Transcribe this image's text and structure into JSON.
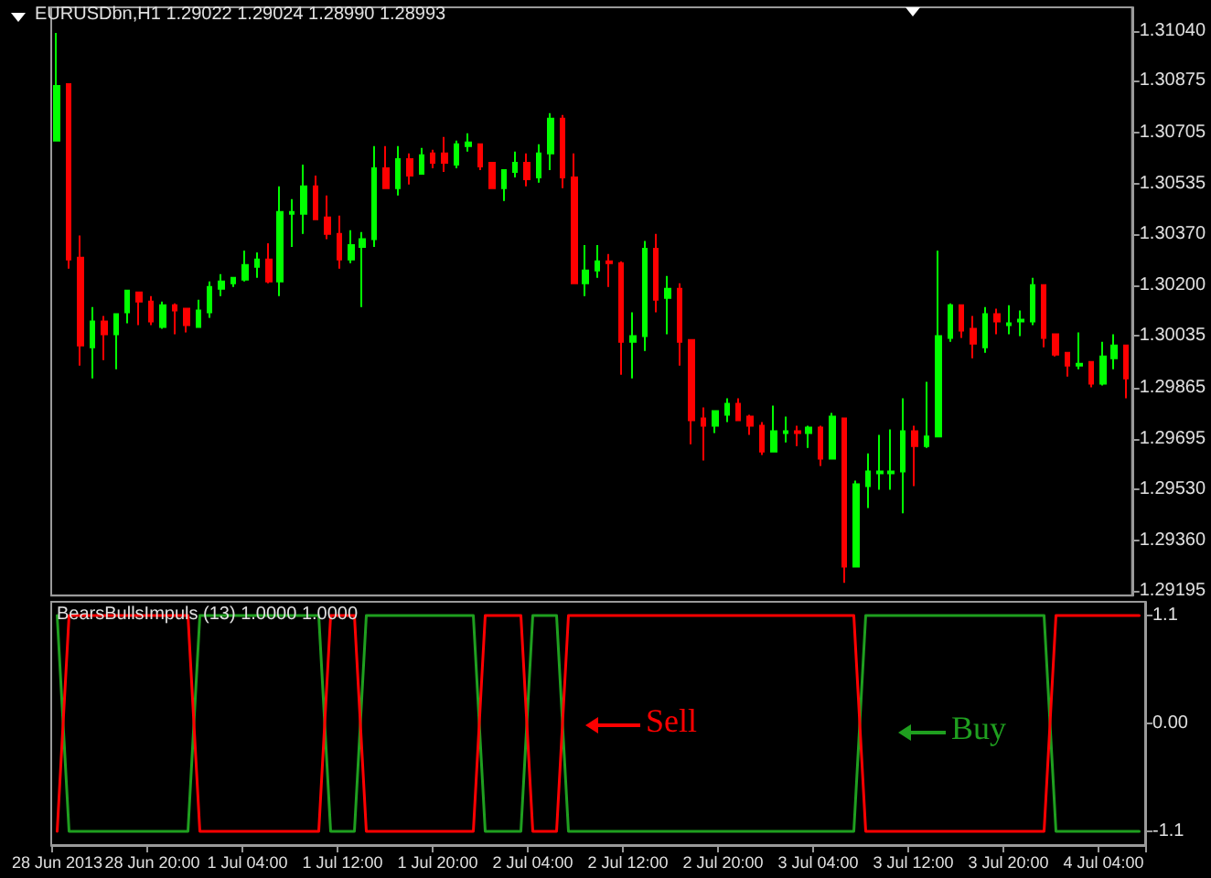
{
  "chart_data": [
    {
      "type": "candlestick",
      "title": "EURUSDbn,H1 1.29022 1.29024 1.28990 1.28993",
      "categories": [
        null,
        null,
        null,
        null,
        null,
        null,
        null,
        null,
        null,
        null,
        null,
        null,
        null,
        null,
        null,
        null,
        null,
        null,
        null,
        null,
        null,
        null,
        null,
        null,
        null,
        null,
        null,
        null,
        null,
        null,
        null,
        null,
        null,
        null,
        null,
        null,
        null,
        null,
        null,
        null,
        null,
        null,
        null,
        null,
        null,
        null,
        null,
        null,
        null,
        null,
        null,
        null,
        null,
        null,
        null,
        null,
        null,
        null,
        null,
        null,
        null,
        null,
        null,
        null,
        null,
        null,
        null,
        null,
        null,
        null,
        null,
        null,
        null,
        null,
        null,
        null,
        null,
        null,
        null,
        null,
        null,
        null,
        null,
        null,
        null,
        null,
        null,
        null,
        null,
        null,
        null,
        null
      ],
      "ohlc": [
        [
          1.30678,
          1.31033,
          1.30678,
          1.30858
        ],
        [
          1.30864,
          1.30864,
          1.30256,
          1.30286
        ],
        [
          1.30292,
          1.30365,
          1.29937,
          1.30003
        ],
        [
          1.29997,
          1.3013,
          1.29895,
          1.30082
        ],
        [
          1.30082,
          1.301,
          1.29955,
          1.3004
        ],
        [
          1.3004,
          1.30106,
          1.29925,
          1.30106
        ],
        [
          1.30112,
          1.30184,
          1.30076,
          1.30184
        ],
        [
          1.30178,
          1.30178,
          1.3007,
          1.30148
        ],
        [
          1.30148,
          1.30166,
          1.3007,
          1.30082
        ],
        [
          1.30064,
          1.30148,
          1.30058,
          1.30136
        ],
        [
          1.30136,
          1.30142,
          1.3004,
          1.30118
        ],
        [
          1.30124,
          1.30124,
          1.30046,
          1.3007
        ],
        [
          1.30064,
          1.30154,
          1.30064,
          1.30118
        ],
        [
          1.30112,
          1.30214,
          1.30094,
          1.30196
        ],
        [
          1.3019,
          1.30238,
          1.30166,
          1.30214
        ],
        [
          1.30208,
          1.30226,
          1.30196,
          1.30226
        ],
        [
          1.3022,
          1.30316,
          1.30214,
          1.30268
        ],
        [
          1.30262,
          1.3031,
          1.30226,
          1.30286
        ],
        [
          1.30286,
          1.3034,
          1.30208,
          1.30214
        ],
        [
          1.30214,
          1.30527,
          1.30166,
          1.30443
        ],
        [
          1.30437,
          1.30485,
          1.30328,
          1.30443
        ],
        [
          1.30437,
          1.30599,
          1.30371,
          1.30527
        ],
        [
          1.30527,
          1.30563,
          1.30419,
          1.30419
        ],
        [
          1.30425,
          1.30497,
          1.30353,
          1.30371
        ],
        [
          1.30371,
          1.30431,
          1.30256,
          1.30286
        ],
        [
          1.30286,
          1.30383,
          1.30274,
          1.30334
        ],
        [
          1.30328,
          1.30377,
          1.3013,
          1.30353
        ],
        [
          1.30353,
          1.3066,
          1.30328,
          1.30587
        ],
        [
          1.30587,
          1.3066,
          1.30521,
          1.30521
        ],
        [
          1.30521,
          1.3066,
          1.30497,
          1.30617
        ],
        [
          1.30617,
          1.30636,
          1.30533,
          1.30563
        ],
        [
          1.30569,
          1.30654,
          1.30569,
          1.3063
        ],
        [
          1.30636,
          1.30648,
          1.30587,
          1.30605
        ],
        [
          1.30636,
          1.3069,
          1.30575,
          1.30605
        ],
        [
          1.30599,
          1.30678,
          1.30587,
          1.30666
        ],
        [
          1.3066,
          1.30702,
          1.30642,
          1.30672
        ],
        [
          1.30666,
          1.30666,
          1.30581,
          1.30593
        ],
        [
          1.30605,
          1.30605,
          1.30521,
          1.30521
        ],
        [
          1.30521,
          1.30581,
          1.30479,
          1.30581
        ],
        [
          1.30575,
          1.30642,
          1.30557,
          1.30605
        ],
        [
          1.30605,
          1.30636,
          1.30527,
          1.30551
        ],
        [
          1.30557,
          1.30666,
          1.30539,
          1.30636
        ],
        [
          1.30636,
          1.30768,
          1.30581,
          1.3075
        ],
        [
          1.3075,
          1.30762,
          1.30521,
          1.30557
        ],
        [
          1.30557,
          1.30636,
          1.30208,
          1.30208
        ],
        [
          1.30208,
          1.30334,
          1.30166,
          1.3025
        ],
        [
          1.3025,
          1.30334,
          1.30226,
          1.3028
        ],
        [
          1.3028,
          1.30304,
          1.30196,
          1.30274
        ],
        [
          1.30274,
          1.3028,
          1.29907,
          1.30015
        ],
        [
          1.30015,
          1.30112,
          1.29895,
          1.30034
        ],
        [
          1.30034,
          1.30347,
          1.29985,
          1.30322
        ],
        [
          1.30322,
          1.30371,
          1.30112,
          1.30154
        ],
        [
          1.3016,
          1.30232,
          1.3004,
          1.3019
        ],
        [
          1.3019,
          1.30208,
          1.29937,
          1.30015
        ],
        [
          1.30021,
          1.30021,
          1.29678,
          1.29757
        ],
        [
          1.29763,
          1.29799,
          1.29624,
          1.29739
        ],
        [
          1.29739,
          1.29787,
          1.29715,
          1.29787
        ],
        [
          1.29775,
          1.29829,
          1.29751,
          1.29811
        ],
        [
          1.29811,
          1.29829,
          1.29757,
          1.29757
        ],
        [
          1.29769,
          1.29775,
          1.29709,
          1.29739
        ],
        [
          1.29739,
          1.29751,
          1.29642,
          1.29654
        ],
        [
          1.29654,
          1.29805,
          1.29654,
          1.29721
        ],
        [
          1.29715,
          1.29769,
          1.29684,
          1.29721
        ],
        [
          1.29721,
          1.29739,
          1.29672,
          1.29715
        ],
        [
          1.29715,
          1.29739,
          1.29666,
          1.29733
        ],
        [
          1.29733,
          1.29739,
          1.29606,
          1.2963
        ],
        [
          1.2963,
          1.29781,
          1.2963,
          1.29769
        ],
        [
          1.29763,
          1.29763,
          1.29221,
          1.29275
        ],
        [
          1.29275,
          1.29558,
          1.29275,
          1.29546
        ],
        [
          1.2954,
          1.29648,
          1.29468,
          1.29588
        ],
        [
          1.29582,
          1.29709,
          1.29528,
          1.29588
        ],
        [
          1.29582,
          1.29727,
          1.29528,
          1.29588
        ],
        [
          1.29588,
          1.29829,
          1.2945,
          1.29721
        ],
        [
          1.29721,
          1.29739,
          1.2954,
          1.29672
        ],
        [
          1.29672,
          1.29883,
          1.29666,
          1.29703
        ],
        [
          1.29703,
          1.30316,
          1.29703,
          1.30034
        ],
        [
          1.30028,
          1.30142,
          1.30015,
          1.30136
        ],
        [
          1.30136,
          1.30136,
          1.30028,
          1.30052
        ],
        [
          1.30058,
          1.301,
          1.29961,
          1.30009
        ],
        [
          1.29997,
          1.3013,
          1.29979,
          1.30106
        ],
        [
          1.30106,
          1.30124,
          1.3004,
          1.30082
        ],
        [
          1.3007,
          1.30136,
          1.3004,
          1.30076
        ],
        [
          1.30082,
          1.30118,
          1.30034,
          1.30088
        ],
        [
          1.30082,
          1.30226,
          1.3007,
          1.30202
        ],
        [
          1.30202,
          1.30202,
          1.29997,
          1.30028
        ],
        [
          1.3004,
          1.3004,
          1.29967,
          1.29973
        ],
        [
          1.29979,
          1.29979,
          1.29901,
          1.29937
        ],
        [
          1.29937,
          1.30046,
          1.29925,
          1.29943
        ],
        [
          1.29949,
          1.29949,
          1.29865,
          1.29877
        ],
        [
          1.29877,
          1.30015,
          1.29871,
          1.29967
        ],
        [
          1.29961,
          1.3004,
          1.29925,
          1.30003
        ],
        [
          1.30003,
          1.30003,
          1.29829,
          1.29895
        ]
      ],
      "colors": [
        "#00ff00",
        "#ff0000",
        "#ff0000",
        "#00ff00",
        "#ff0000",
        "#00ff00",
        "#00ff00",
        "#ff0000",
        "#ff0000",
        "#00ff00",
        "#ff0000",
        "#ff0000",
        "#00ff00",
        "#00ff00",
        "#00ff00",
        "#00ff00",
        "#00ff00",
        "#00ff00",
        "#ff0000",
        "#00ff00",
        "#00ff00",
        "#00ff00",
        "#ff0000",
        "#ff0000",
        "#ff0000",
        "#00ff00",
        "#00ff00",
        "#00ff00",
        "#ff0000",
        "#00ff00",
        "#ff0000",
        "#00ff00",
        "#ff0000",
        "#ff0000",
        "#00ff00",
        "#00ff00",
        "#ff0000",
        "#ff0000",
        "#00ff00",
        "#00ff00",
        "#ff0000",
        "#00ff00",
        "#00ff00",
        "#ff0000",
        "#ff0000",
        "#00ff00",
        "#00ff00",
        "#ff0000",
        "#ff0000",
        "#00ff00",
        "#00ff00",
        "#ff0000",
        "#00ff00",
        "#ff0000",
        "#ff0000",
        "#ff0000",
        "#00ff00",
        "#00ff00",
        "#ff0000",
        "#ff0000",
        "#ff0000",
        "#00ff00",
        "#00ff00",
        "#ff0000",
        "#00ff00",
        "#ff0000",
        "#00ff00",
        "#ff0000",
        "#00ff00",
        "#00ff00",
        "#00ff00",
        "#00ff00",
        "#00ff00",
        "#ff0000",
        "#00ff00",
        "#00ff00",
        "#00ff00",
        "#ff0000",
        "#ff0000",
        "#00ff00",
        "#ff0000",
        "#00ff00",
        "#00ff00",
        "#00ff00",
        "#ff0000",
        "#ff0000",
        "#ff0000",
        "#00ff00",
        "#ff0000",
        "#00ff00",
        "#00ff00",
        "#ff0000"
      ],
      "ylim": [
        1.29179,
        1.31117
      ],
      "yticks": [
        {
          "value": 1.3104,
          "label": "1.31040"
        },
        1.30875,
        1.30705,
        1.30535,
        {
          "value": 1.3037,
          "label": "1.30370"
        },
        {
          "value": 1.302,
          "label": "1.30200"
        },
        1.30035,
        1.29865,
        1.29695,
        {
          "value": 1.2953,
          "label": "1.29530"
        },
        {
          "value": 1.2936,
          "label": "1.29360"
        },
        1.29195
      ],
      "tick_labels": "y"
    },
    {
      "type": "line",
      "title": "BearsBullsImpuls (13) 1.0000 1.0000",
      "categories": [
        "28 Jun 2013",
        null,
        null,
        null,
        null,
        null,
        null,
        null,
        "28 Jun 20:00",
        null,
        null,
        null,
        null,
        null,
        null,
        null,
        "1 Jul 04:00",
        null,
        null,
        null,
        null,
        null,
        null,
        null,
        "1 Jul 12:00",
        null,
        null,
        null,
        null,
        null,
        null,
        null,
        "1 Jul 20:00",
        null,
        null,
        null,
        null,
        null,
        null,
        null,
        "2 Jul 04:00",
        null,
        null,
        null,
        null,
        null,
        null,
        null,
        "2 Jul 12:00",
        null,
        null,
        null,
        null,
        null,
        null,
        null,
        "2 Jul 20:00",
        null,
        null,
        null,
        null,
        null,
        null,
        null,
        "3 Jul 04:00",
        null,
        null,
        null,
        null,
        null,
        null,
        null,
        "3 Jul 12:00",
        null,
        null,
        null,
        null,
        null,
        null,
        null,
        "3 Jul 20:00",
        null,
        null,
        null,
        null,
        null,
        null,
        null,
        "4 Jul 04:00",
        null,
        null,
        null
      ],
      "series": [
        {
          "color": "#1f9f1f",
          "values": [
            1.1,
            -1.1,
            -1.1,
            -1.1,
            -1.1,
            -1.1,
            -1.1,
            -1.1,
            -1.1,
            -1.1,
            -1.1,
            -1.1,
            1.1,
            1.1,
            1.1,
            1.1,
            1.1,
            1.1,
            1.1,
            1.1,
            1.1,
            1.1,
            1.1,
            -1.1,
            -1.1,
            -1.1,
            1.1,
            1.1,
            1.1,
            1.1,
            1.1,
            1.1,
            1.1,
            1.1,
            1.1,
            1.1,
            -1.1,
            -1.1,
            -1.1,
            -1.1,
            1.1,
            1.1,
            1.1,
            -1.1,
            -1.1,
            -1.1,
            -1.1,
            -1.1,
            -1.1,
            -1.1,
            -1.1,
            -1.1,
            -1.1,
            -1.1,
            -1.1,
            -1.1,
            -1.1,
            -1.1,
            -1.1,
            -1.1,
            -1.1,
            -1.1,
            -1.1,
            -1.1,
            -1.1,
            -1.1,
            -1.1,
            -1.1,
            1.1,
            1.1,
            1.1,
            1.1,
            1.1,
            1.1,
            1.1,
            1.1,
            1.1,
            1.1,
            1.1,
            1.1,
            1.1,
            1.1,
            1.1,
            1.1,
            -1.1,
            -1.1,
            -1.1,
            -1.1,
            -1.1,
            -1.1,
            -1.1,
            -1.1
          ]
        },
        {
          "color": "#ff0000",
          "values": [
            -1.1,
            1.1,
            1.1,
            1.1,
            1.1,
            1.1,
            1.1,
            1.1,
            1.1,
            1.1,
            1.1,
            1.1,
            -1.1,
            -1.1,
            -1.1,
            -1.1,
            -1.1,
            -1.1,
            -1.1,
            -1.1,
            -1.1,
            -1.1,
            -1.1,
            1.1,
            1.1,
            1.1,
            -1.1,
            -1.1,
            -1.1,
            -1.1,
            -1.1,
            -1.1,
            -1.1,
            -1.1,
            -1.1,
            -1.1,
            1.1,
            1.1,
            1.1,
            1.1,
            -1.1,
            -1.1,
            -1.1,
            1.1,
            1.1,
            1.1,
            1.1,
            1.1,
            1.1,
            1.1,
            1.1,
            1.1,
            1.1,
            1.1,
            1.1,
            1.1,
            1.1,
            1.1,
            1.1,
            1.1,
            1.1,
            1.1,
            1.1,
            1.1,
            1.1,
            1.1,
            1.1,
            1.1,
            -1.1,
            -1.1,
            -1.1,
            -1.1,
            -1.1,
            -1.1,
            -1.1,
            -1.1,
            -1.1,
            -1.1,
            -1.1,
            -1.1,
            -1.1,
            -1.1,
            -1.1,
            -1.1,
            1.1,
            1.1,
            1.1,
            1.1,
            1.1,
            1.1,
            1.1,
            1.1
          ]
        }
      ],
      "ylim": [
        -1.24,
        1.24
      ],
      "yticks": [
        1.1,
        {
          "value": 0,
          "label": "0.00"
        },
        -1.1
      ],
      "marker": "none",
      "line_style": "solid",
      "annotations": [
        "Sell",
        "Buy"
      ]
    }
  ]
}
